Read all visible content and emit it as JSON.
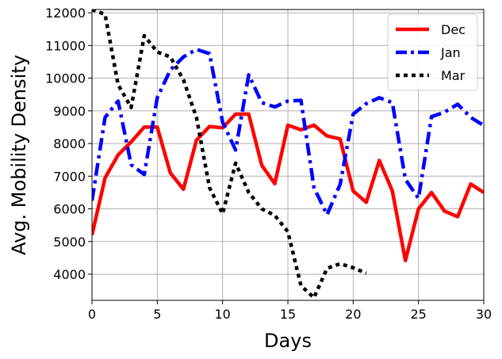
{
  "chart_data": {
    "type": "line",
    "xlabel": "Days",
    "ylabel": "Avg. Mobility Density",
    "xlim": [
      0,
      30
    ],
    "ylim": [
      3200,
      12100
    ],
    "xticks": [
      0,
      5,
      10,
      15,
      20,
      25,
      30
    ],
    "yticks": [
      4000,
      5000,
      6000,
      7000,
      8000,
      9000,
      10000,
      11000,
      12000
    ],
    "grid": true,
    "legend_position": "top-right",
    "series": [
      {
        "name": "Dec",
        "color": "#ff0000",
        "style": "solid",
        "x": [
          0,
          1,
          2,
          3,
          4,
          5,
          6,
          7,
          8,
          9,
          10,
          11,
          12,
          13,
          14,
          15,
          16,
          17,
          18,
          19,
          20,
          21,
          22,
          23,
          24,
          25,
          26,
          27,
          28,
          29,
          30
        ],
        "values": [
          5200,
          6950,
          7650,
          8050,
          8500,
          8500,
          7100,
          6600,
          8100,
          8520,
          8480,
          8900,
          8900,
          7330,
          6770,
          8560,
          8420,
          8560,
          8230,
          8140,
          6550,
          6200,
          7480,
          6550,
          4420,
          6000,
          6500,
          5930,
          5760,
          6760,
          6500
        ]
      },
      {
        "name": "Jan",
        "color": "#0000ff",
        "style": "dashdot",
        "x": [
          0,
          1,
          2,
          3,
          4,
          5,
          6,
          7,
          8,
          9,
          10,
          11,
          12,
          13,
          14,
          15,
          16,
          17,
          18,
          19,
          20,
          21,
          22,
          23,
          24,
          25,
          26,
          27,
          28,
          29,
          30
        ],
        "values": [
          6250,
          8800,
          9300,
          7350,
          7050,
          9400,
          10250,
          10650,
          10880,
          10750,
          8650,
          7800,
          10100,
          9250,
          9120,
          9300,
          9320,
          6650,
          5820,
          6750,
          8900,
          9220,
          9400,
          9250,
          6900,
          6320,
          8820,
          8960,
          9200,
          8800,
          8550
        ]
      },
      {
        "name": "Mar",
        "color": "#000000",
        "style": "dotted",
        "x": [
          0,
          1,
          2,
          3,
          4,
          5,
          6,
          7,
          8,
          9,
          10,
          11,
          12,
          13,
          14,
          15,
          16,
          17,
          18,
          19,
          20,
          21
        ],
        "values": [
          12100,
          11950,
          9800,
          9100,
          11300,
          10800,
          10650,
          9950,
          8800,
          6650,
          5850,
          7400,
          6500,
          6000,
          5800,
          5300,
          3650,
          3280,
          4180,
          4320,
          4200,
          4030
        ]
      }
    ]
  }
}
